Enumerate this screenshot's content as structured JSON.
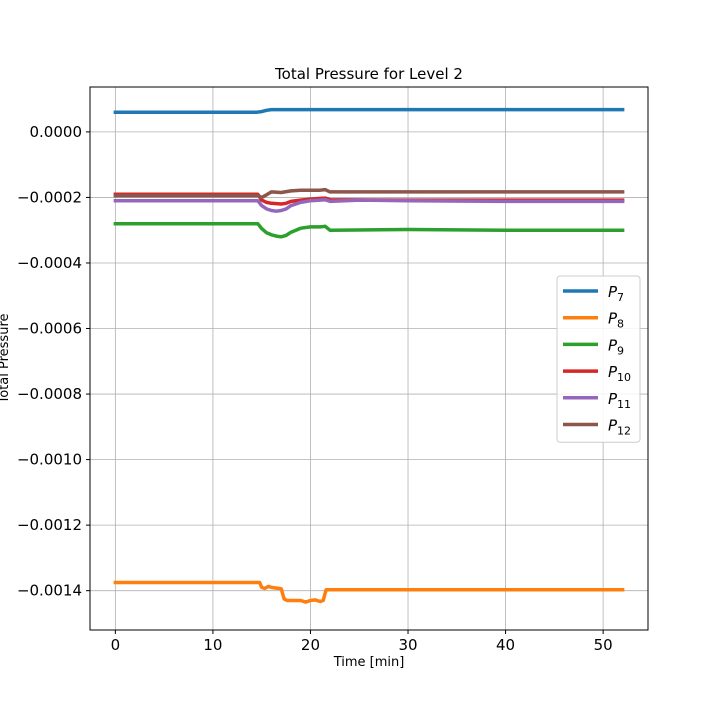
{
  "chart_data": {
    "type": "line",
    "title": "Total Pressure for Level 2",
    "xlabel": "Time [min]",
    "ylabel": "Total Pressure",
    "xlim": [
      -2.6,
      54.6
    ],
    "ylim": [
      -0.00152,
      0.000137
    ],
    "xticks": [
      0,
      10,
      20,
      30,
      40,
      50
    ],
    "xtick_labels": [
      "0",
      "10",
      "20",
      "30",
      "40",
      "50"
    ],
    "yticks": [
      0.0,
      -0.0002,
      -0.0004,
      -0.0006,
      -0.0008,
      -0.001,
      -0.0012,
      -0.0014
    ],
    "ytick_labels": [
      "0.0000",
      "−0.0002",
      "−0.0004",
      "−0.0006",
      "−0.0008",
      "−0.0010",
      "−0.0012",
      "−0.0014"
    ],
    "grid": true,
    "legend_position": "center-right",
    "series": [
      {
        "name": "P7",
        "label_main": "P",
        "label_sub": "7",
        "color": "#1f77b4",
        "x": [
          0,
          14.5,
          15.0,
          15.5,
          16.0,
          20,
          30,
          40,
          52
        ],
        "y": [
          6e-05,
          6e-05,
          6.2e-05,
          6.6e-05,
          6.8e-05,
          6.8e-05,
          6.8e-05,
          6.8e-05,
          6.8e-05
        ]
      },
      {
        "name": "P8",
        "label_main": "P",
        "label_sub": "8",
        "color": "#ff7f0e",
        "x": [
          0,
          14.8,
          15.0,
          15.3,
          15.7,
          16.0,
          16.5,
          17.0,
          17.3,
          17.6,
          18,
          18.5,
          19,
          19.5,
          20,
          20.5,
          21,
          21.3,
          21.6,
          22,
          30,
          40,
          52
        ],
        "y": [
          -0.001375,
          -0.001375,
          -0.00139,
          -0.001393,
          -0.001387,
          -0.00139,
          -0.001392,
          -0.001394,
          -0.001425,
          -0.00143,
          -0.00143,
          -0.00143,
          -0.00143,
          -0.001435,
          -0.00143,
          -0.001428,
          -0.001433,
          -0.00143,
          -0.001397,
          -0.001397,
          -0.001397,
          -0.001397,
          -0.001397
        ]
      },
      {
        "name": "P9",
        "label_main": "P",
        "label_sub": "9",
        "color": "#2ca02c",
        "x": [
          0,
          14.6,
          15.0,
          15.5,
          16,
          16.5,
          17,
          17.5,
          18,
          19,
          20,
          21,
          21.5,
          22,
          30,
          40,
          52
        ],
        "y": [
          -0.00028,
          -0.00028,
          -0.000295,
          -0.000308,
          -0.000314,
          -0.000318,
          -0.00032,
          -0.000316,
          -0.000306,
          -0.000294,
          -0.00029,
          -0.00029,
          -0.000288,
          -0.0003,
          -0.000298,
          -0.0003,
          -0.0003
        ]
      },
      {
        "name": "P10",
        "label_main": "P",
        "label_sub": "10",
        "color": "#d62728",
        "x": [
          0,
          14.6,
          15.0,
          15.5,
          16,
          17,
          17.5,
          18,
          19,
          20,
          21,
          21.5,
          22,
          30,
          40,
          52
        ],
        "y": [
          -0.00019,
          -0.00019,
          -0.000208,
          -0.000215,
          -0.000218,
          -0.00022,
          -0.000218,
          -0.000212,
          -0.000208,
          -0.000205,
          -0.000203,
          -0.000202,
          -0.000207,
          -0.000208,
          -0.000208,
          -0.000208
        ]
      },
      {
        "name": "P11",
        "label_main": "P",
        "label_sub": "11",
        "color": "#9467bd",
        "x": [
          0,
          14.6,
          15.0,
          15.5,
          16,
          16.5,
          17,
          17.5,
          18,
          19,
          20,
          21,
          21.5,
          22,
          25,
          30,
          40,
          52
        ],
        "y": [
          -0.00021,
          -0.00021,
          -0.000225,
          -0.000235,
          -0.00024,
          -0.000242,
          -0.00024,
          -0.000235,
          -0.000225,
          -0.000215,
          -0.00021,
          -0.000208,
          -0.000207,
          -0.000212,
          -0.000208,
          -0.00021,
          -0.000212,
          -0.000212
        ]
      },
      {
        "name": "P12",
        "label_main": "P",
        "label_sub": "12",
        "color": "#8c564b",
        "x": [
          0,
          14.6,
          15.0,
          15.5,
          16,
          17,
          18,
          19,
          20,
          21,
          21.5,
          22,
          30,
          40,
          52
        ],
        "y": [
          -0.000195,
          -0.000195,
          -0.0002,
          -0.000192,
          -0.000183,
          -0.000185,
          -0.00018,
          -0.000178,
          -0.000178,
          -0.000178,
          -0.000176,
          -0.000183,
          -0.000183,
          -0.000183,
          -0.000183
        ]
      }
    ]
  }
}
